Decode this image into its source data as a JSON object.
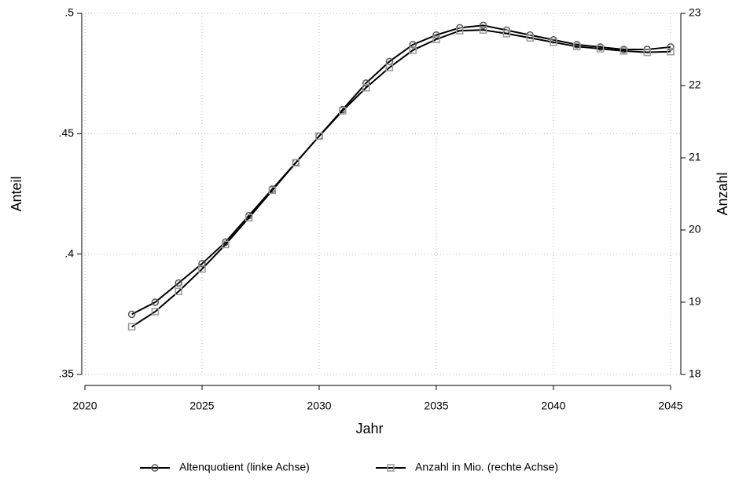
{
  "chart_data": {
    "type": "line",
    "x": [
      2022,
      2023,
      2024,
      2025,
      2026,
      2027,
      2028,
      2029,
      2030,
      2031,
      2032,
      2033,
      2034,
      2035,
      2036,
      2037,
      2038,
      2039,
      2040,
      2041,
      2042,
      2043,
      2044,
      2045
    ],
    "series": [
      {
        "name": "Altenquotient (linke Achse)",
        "color": "#000000",
        "marker": "circle",
        "marker_color": "#555555",
        "values": [
          0.375,
          0.38,
          0.388,
          0.396,
          0.405,
          0.416,
          0.427,
          0.438,
          0.449,
          0.46,
          0.471,
          0.48,
          0.487,
          0.491,
          0.494,
          0.495,
          0.493,
          0.491,
          0.489,
          0.487,
          0.486,
          0.485,
          0.485,
          0.486
        ]
      },
      {
        "name": "Anzahl in Mio. (rechte Achse)",
        "color": "#000000",
        "marker": "square",
        "marker_color": "#999999",
        "axis": "y2",
        "values": [
          18.66,
          18.87,
          19.15,
          19.46,
          19.8,
          20.17,
          20.55,
          20.93,
          21.3,
          21.65,
          21.97,
          22.25,
          22.49,
          22.64,
          22.76,
          22.77,
          22.72,
          22.66,
          22.6,
          22.54,
          22.51,
          22.48,
          22.46,
          22.47
        ]
      }
    ],
    "xlabel": "Jahr",
    "ylabel": "Anteil",
    "y2label": "Anzahl",
    "xlim": [
      2020,
      2045
    ],
    "xticks": [
      2020,
      2025,
      2030,
      2035,
      2040,
      2045
    ],
    "ylim": [
      0.35,
      0.5
    ],
    "yticks": [
      {
        "value": 0.35,
        "label": ".35"
      },
      {
        "value": 0.4,
        "label": ".4"
      },
      {
        "value": 0.45,
        "label": ".45"
      },
      {
        "value": 0.5,
        "label": ".5"
      }
    ],
    "y2lim": [
      18,
      23
    ],
    "y2ticks": [
      18,
      19,
      20,
      21,
      22,
      23
    ],
    "grid": true,
    "legend": "bottom"
  }
}
